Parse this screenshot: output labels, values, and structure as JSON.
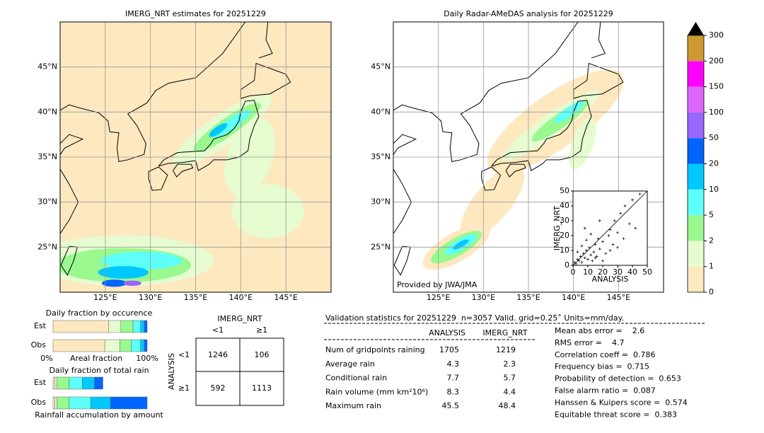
{
  "left_map": {
    "title": "IMERG_NRT estimates for 20251229",
    "xlim": [
      120,
      150
    ],
    "ylim": [
      20,
      50
    ],
    "lat_ticks": [
      {
        "value": 45,
        "label": "45°N"
      },
      {
        "value": 40,
        "label": "40°N"
      },
      {
        "value": 35,
        "label": "35°N"
      },
      {
        "value": 30,
        "label": "30°N"
      },
      {
        "value": 25,
        "label": "25°N"
      }
    ],
    "lon_ticks": [
      {
        "value": 125,
        "label": "125°E"
      },
      {
        "value": 130,
        "label": "130°E"
      },
      {
        "value": 135,
        "label": "135°E"
      },
      {
        "value": 140,
        "label": "140°E"
      },
      {
        "value": 145,
        "label": "145°E"
      }
    ]
  },
  "right_map": {
    "title": "Daily Radar-AMeDAS analysis for 20251229",
    "credit": "Provided by JWA/JMA",
    "xlim": [
      120,
      150
    ],
    "ylim": [
      20,
      50
    ],
    "lat_ticks": [
      {
        "value": 45,
        "label": "45°N"
      },
      {
        "value": 40,
        "label": "40°N"
      },
      {
        "value": 35,
        "label": "35°N"
      },
      {
        "value": 30,
        "label": "30°N"
      },
      {
        "value": 25,
        "label": "25°N"
      }
    ],
    "lon_ticks": [
      {
        "value": 125,
        "label": "125°E"
      },
      {
        "value": 130,
        "label": "130°E"
      },
      {
        "value": 135,
        "label": "135°E"
      },
      {
        "value": 140,
        "label": "140°E"
      },
      {
        "value": 145,
        "label": "145°E"
      }
    ]
  },
  "colorbar": {
    "levels": [
      0,
      1,
      2,
      5,
      10,
      20,
      50,
      100,
      150,
      200,
      300
    ],
    "colors": [
      "#fde8c0",
      "#e6fcd0",
      "#99f98f",
      "#5efff8",
      "#00c8ff",
      "#0064ff",
      "#9966ff",
      "#dd66ff",
      "#ff00ff",
      "#cc9933"
    ],
    "extend_color": "#000000"
  },
  "scatter": {
    "xlabel": "ANALYSIS",
    "ylabel": "IMERG_NRT",
    "xlim": [
      0,
      50
    ],
    "ylim": [
      0,
      50
    ],
    "xticks": [
      0,
      10,
      20,
      30,
      40,
      50
    ],
    "yticks": [
      0,
      10,
      20,
      30,
      40,
      50
    ],
    "x": [
      1,
      2,
      3,
      4,
      5,
      6,
      7,
      8,
      9,
      10,
      11,
      12,
      13,
      14,
      15,
      16,
      17,
      18,
      20,
      22,
      24,
      25,
      27,
      28,
      30,
      32,
      34,
      35,
      38,
      40,
      42,
      45,
      3,
      6,
      9,
      12,
      15,
      20,
      25,
      30,
      8,
      18
    ],
    "y": [
      2,
      1,
      4,
      3,
      6,
      2,
      8,
      5,
      10,
      4,
      12,
      7,
      3,
      9,
      14,
      6,
      18,
      11,
      16,
      8,
      20,
      24,
      14,
      30,
      22,
      35,
      18,
      40,
      28,
      44,
      25,
      48,
      9,
      13,
      17,
      21,
      5,
      3,
      10,
      12,
      25,
      30
    ]
  },
  "occurrence": {
    "title": "Daily fraction by occurence",
    "rows": [
      "Est",
      "Obs"
    ],
    "left_label": "0%",
    "mid_label": "Areal fraction",
    "right_label": "100%",
    "est": [
      59,
      13,
      13,
      8,
      4,
      3
    ],
    "obs": [
      55,
      16,
      12,
      10,
      4,
      3
    ]
  },
  "total_rain": {
    "title": "Daily fraction of total rain",
    "rows": [
      "Est",
      "Obs"
    ],
    "xlabel": "Rainfall accumulation by amount",
    "est": [
      2,
      2,
      13,
      14,
      13,
      9
    ],
    "obs": [
      2,
      2,
      13,
      23,
      21,
      39
    ]
  },
  "contingency": {
    "col_title": "IMERG_NRT",
    "row_title": "ANALYSIS",
    "cols": [
      "<1",
      "≥1"
    ],
    "rows": [
      "<1",
      "≥1"
    ],
    "cells": [
      [
        1246,
        106
      ],
      [
        592,
        1113
      ]
    ]
  },
  "validation": {
    "header": "Validation statistics for 20251229  n=3057 Valid. grid=0.25˚ Units=mm/day.",
    "columns": [
      "ANALYSIS",
      "IMERG_NRT"
    ],
    "rows": [
      {
        "label": "Num of gridpoints raining",
        "values": [
          1705,
          1219
        ]
      },
      {
        "label": "Average rain",
        "values": [
          4.3,
          2.3
        ]
      },
      {
        "label": "Conditional rain",
        "values": [
          7.7,
          5.7
        ]
      },
      {
        "label": "Rain volume (mm km²10⁶)",
        "values": [
          8.3,
          4.4
        ]
      },
      {
        "label": "Maximum rain",
        "values": [
          45.5,
          48.4
        ]
      }
    ],
    "scores": [
      "Mean abs error =    2.6",
      "RMS error =    4.7",
      "Correlation coeff =  0.786",
      "Frequency bias =  0.715",
      "Probability of detection =  0.653",
      "False alarm ratio =  0.087",
      "Hanssen & Kuipers score =  0.574",
      "Equitable threat score =  0.383"
    ]
  }
}
